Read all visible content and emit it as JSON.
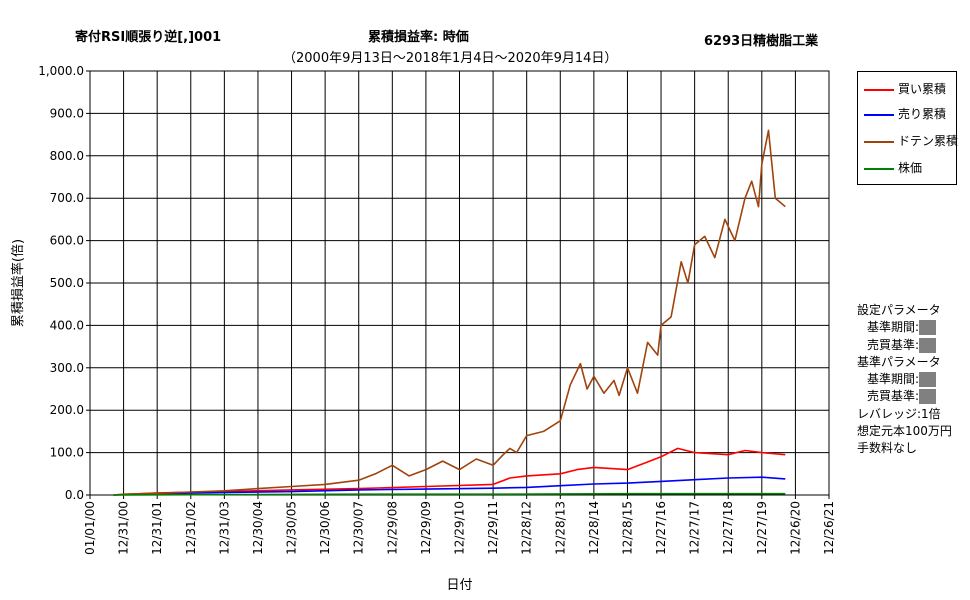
{
  "header": {
    "strategy": "寄付RSI順張り逆[,]001",
    "metric": "累積損益率:  時価",
    "period": "（2000年9月13日～2018年1月4日～2020年9月14日）",
    "stock": "6293日精樹脂工業"
  },
  "legend": {
    "items": [
      {
        "label": "買い累積",
        "color": "#ff0000"
      },
      {
        "label": "売り累積",
        "color": "#0000ff"
      },
      {
        "label": "ドテン累積",
        "color": "#a0430c"
      },
      {
        "label": "株価",
        "color": "#008000"
      }
    ]
  },
  "params": {
    "setting_title": "設定パラメータ",
    "setting_period": "基準期間:",
    "setting_criteria": "売買基準:",
    "base_title": "基準パラメータ",
    "base_period": "基準期間:",
    "base_criteria": "売買基準:",
    "leverage": "レバレッジ:1倍",
    "capital": "想定元本100万円",
    "fee": "手数料なし"
  },
  "chart_data": {
    "type": "line",
    "xlabel": "日付",
    "ylabel": "累積損益率(倍)",
    "ylim": [
      0,
      1000
    ],
    "yticks": [
      "0.0",
      "100.0",
      "200.0",
      "300.0",
      "400.0",
      "500.0",
      "600.0",
      "700.0",
      "800.0",
      "900.0",
      "1,000.0"
    ],
    "xticks": [
      "01/01/00",
      "12/31/00",
      "12/31/01",
      "12/31/02",
      "12/31/03",
      "12/30/04",
      "12/30/05",
      "12/30/06",
      "12/30/07",
      "12/29/08",
      "12/29/09",
      "12/29/10",
      "12/29/11",
      "12/28/12",
      "12/28/13",
      "12/28/14",
      "12/28/15",
      "12/27/16",
      "12/27/17",
      "12/27/18",
      "12/27/19",
      "12/26/20",
      "12/26/21"
    ],
    "grid": true,
    "legend_position": "right",
    "series": [
      {
        "name": "買い累積",
        "color": "#ff0000",
        "x": [
          2000.7,
          2002,
          2004,
          2006,
          2008,
          2010,
          2012,
          2012.5,
          2013,
          2014,
          2014.5,
          2015,
          2016,
          2016.5,
          2017,
          2017.5,
          2018,
          2019,
          2019.5,
          2020,
          2020.7
        ],
        "y": [
          0,
          5,
          8,
          12,
          15,
          20,
          25,
          40,
          45,
          50,
          60,
          65,
          60,
          75,
          90,
          110,
          100,
          95,
          105,
          100,
          95
        ]
      },
      {
        "name": "売り累積",
        "color": "#0000ff",
        "x": [
          2000.7,
          2002,
          2004,
          2006,
          2008,
          2010,
          2012,
          2013,
          2014,
          2015,
          2016,
          2017,
          2018,
          2019,
          2020,
          2020.7
        ],
        "y": [
          0,
          3,
          6,
          8,
          12,
          14,
          16,
          18,
          22,
          26,
          28,
          32,
          36,
          40,
          42,
          38
        ]
      },
      {
        "name": "ドテン累積",
        "color": "#a0430c",
        "x": [
          2000.7,
          2001,
          2002,
          2003,
          2004,
          2005,
          2006,
          2007,
          2008,
          2008.5,
          2009,
          2009.5,
          2010,
          2010.5,
          2011,
          2011.5,
          2012,
          2012.3,
          2012.5,
          2012.7,
          2013,
          2013.5,
          2014,
          2014.3,
          2014.6,
          2014.8,
          2015,
          2015.3,
          2015.6,
          2015.75,
          2016,
          2016.3,
          2016.6,
          2016.9,
          2017,
          2017.3,
          2017.6,
          2017.8,
          2018,
          2018.3,
          2018.6,
          2018.9,
          2019.2,
          2019.5,
          2019.7,
          2019.9,
          2020,
          2020.2,
          2020.4,
          2020.55,
          2020.7
        ],
        "y": [
          0,
          2,
          4,
          7,
          10,
          15,
          20,
          25,
          35,
          50,
          70,
          45,
          60,
          80,
          60,
          85,
          70,
          95,
          110,
          100,
          140,
          150,
          175,
          260,
          310,
          250,
          280,
          240,
          270,
          235,
          300,
          240,
          360,
          330,
          400,
          420,
          550,
          500,
          590,
          610,
          560,
          650,
          600,
          700,
          740,
          680,
          780,
          860,
          700,
          690,
          680
        ]
      },
      {
        "name": "株価",
        "color": "#008000",
        "x": [
          2000.7,
          2004,
          2008,
          2012,
          2016,
          2020.7
        ],
        "y": [
          0,
          1,
          2,
          2,
          3,
          3
        ]
      }
    ]
  }
}
